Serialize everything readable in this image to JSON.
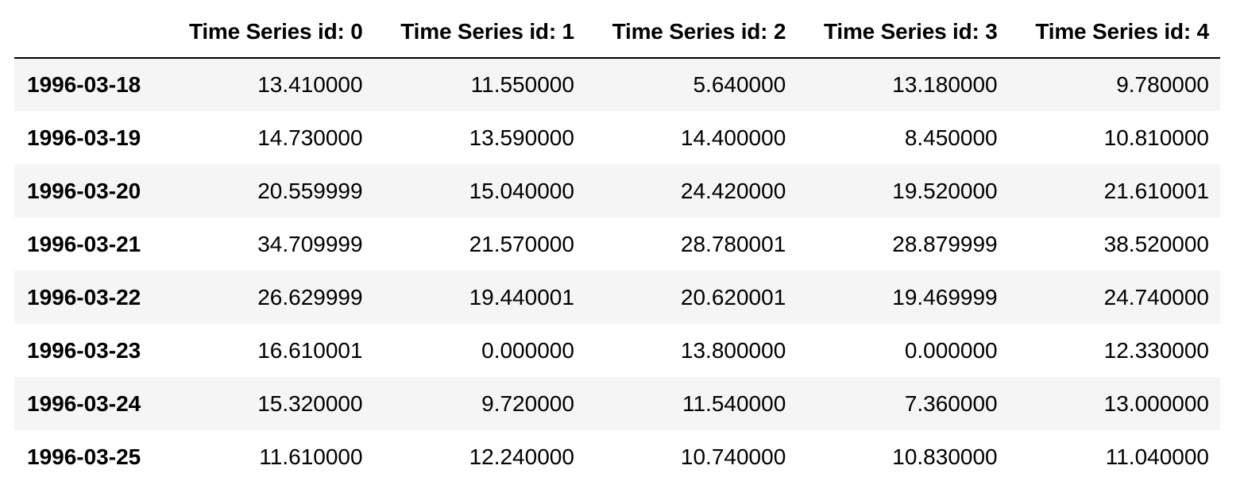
{
  "table": {
    "index_header": "",
    "columns": [
      "Time Series id: 0",
      "Time Series id: 1",
      "Time Series id: 2",
      "Time Series id: 3",
      "Time Series id: 4"
    ],
    "rows": [
      {
        "index": "1996-03-18",
        "values": [
          "13.410000",
          "11.550000",
          "5.640000",
          "13.180000",
          "9.780000"
        ]
      },
      {
        "index": "1996-03-19",
        "values": [
          "14.730000",
          "13.590000",
          "14.400000",
          "8.450000",
          "10.810000"
        ]
      },
      {
        "index": "1996-03-20",
        "values": [
          "20.559999",
          "15.040000",
          "24.420000",
          "19.520000",
          "21.610001"
        ]
      },
      {
        "index": "1996-03-21",
        "values": [
          "34.709999",
          "21.570000",
          "28.780001",
          "28.879999",
          "38.520000"
        ]
      },
      {
        "index": "1996-03-22",
        "values": [
          "26.629999",
          "19.440001",
          "20.620001",
          "19.469999",
          "24.740000"
        ]
      },
      {
        "index": "1996-03-23",
        "values": [
          "16.610001",
          "0.000000",
          "13.800000",
          "0.000000",
          "12.330000"
        ]
      },
      {
        "index": "1996-03-24",
        "values": [
          "15.320000",
          "9.720000",
          "11.540000",
          "7.360000",
          "13.000000"
        ]
      },
      {
        "index": "1996-03-25",
        "values": [
          "11.610000",
          "12.240000",
          "10.740000",
          "10.830000",
          "11.040000"
        ]
      }
    ]
  }
}
